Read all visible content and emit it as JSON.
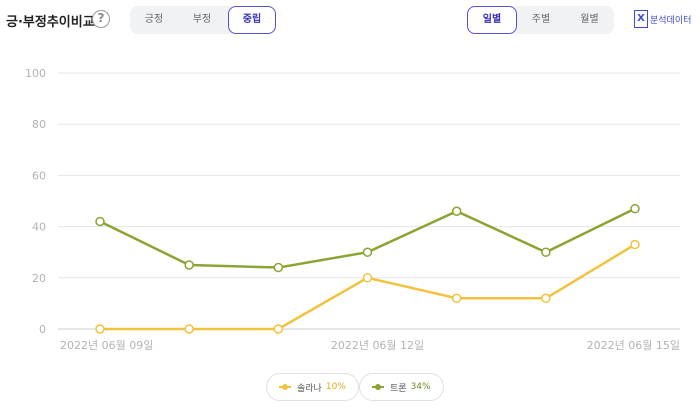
{
  "header": {
    "title": "긍·부정추이비교",
    "help_icon": "?",
    "sentiment_tabs": [
      "긍정",
      "부정",
      "중립"
    ],
    "sentiment_active": 2,
    "period_tabs": [
      "일별",
      "주별",
      "월별"
    ],
    "period_active": 0,
    "report_icon": "X",
    "report_label": "분석데이터"
  },
  "chart_data": {
    "type": "line",
    "ylim": [
      0,
      100
    ],
    "yticks": [
      "0",
      "20",
      "40",
      "60",
      "80",
      "100"
    ],
    "xtick_labels": [
      "2022년 06월 09일",
      "2022년 06월 12일",
      "2022년 06월 15일"
    ],
    "series": [
      {
        "name": "트론",
        "percent": "34%",
        "color": "#8aa431",
        "values": [
          42,
          25,
          24,
          30,
          46,
          30,
          47
        ]
      },
      {
        "name": "솔라나",
        "percent": "10%",
        "color": "#f2c23e",
        "values": [
          0,
          0,
          0,
          20,
          12,
          12,
          33
        ]
      }
    ],
    "legend": "bottom-center"
  }
}
